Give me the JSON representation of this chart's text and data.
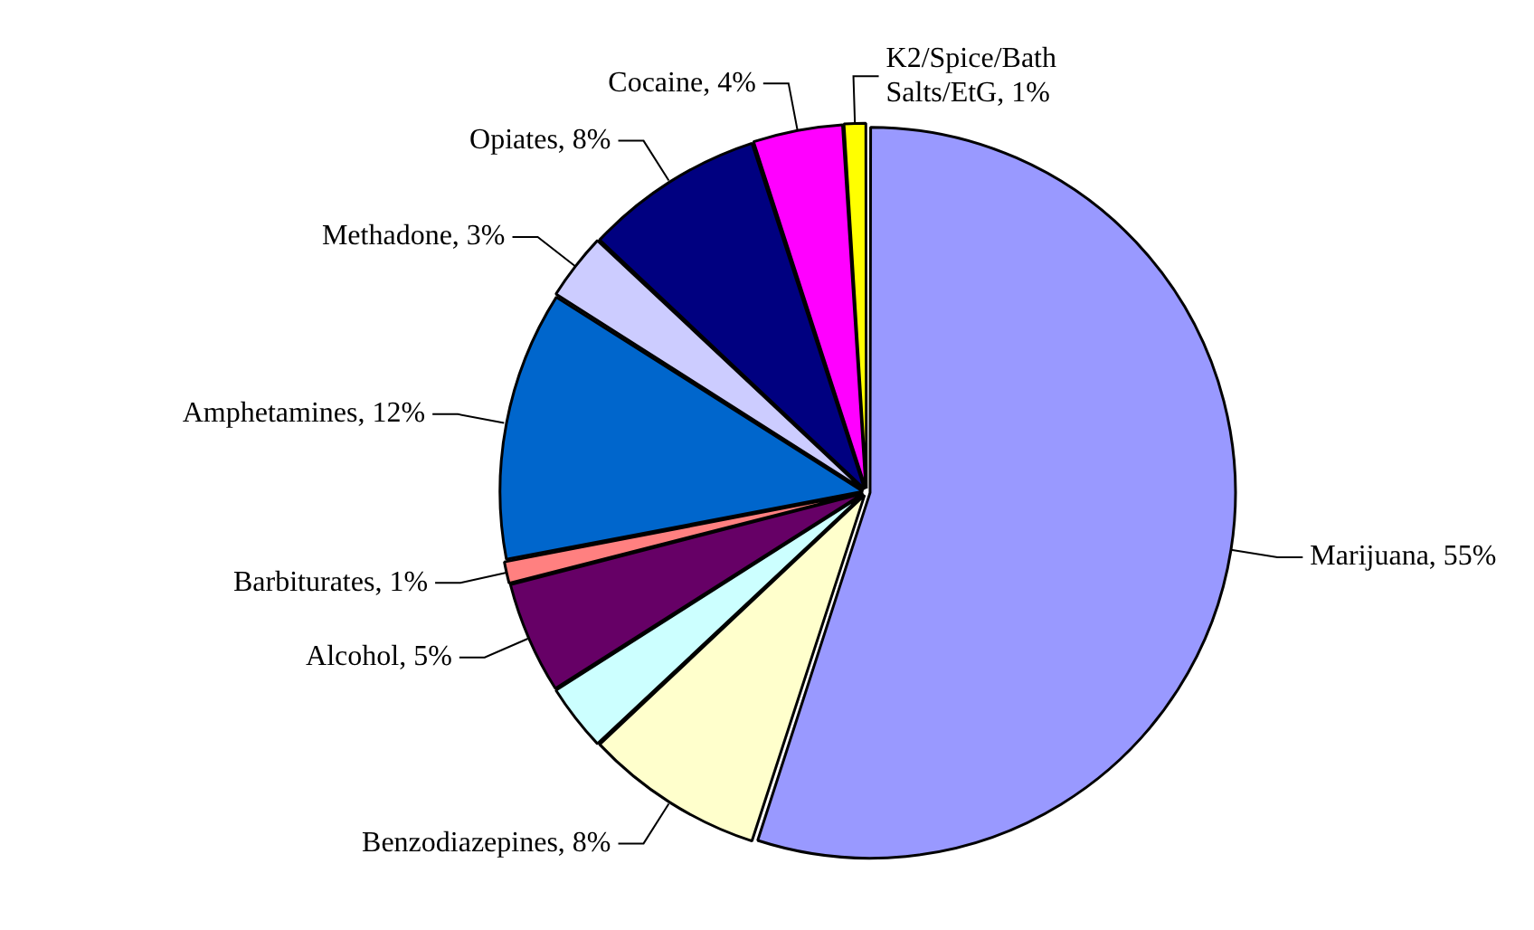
{
  "chart_data": {
    "type": "pie",
    "categories": [
      "Marijuana",
      "Benzodiazepines",
      null,
      "Alcohol",
      "Barbiturates",
      "Amphetamines",
      "Methadone",
      "Opiates",
      "Cocaine",
      "K2/Spice/Bath Salts/EtG"
    ],
    "values": [
      55,
      8,
      3,
      5,
      1,
      12,
      3,
      8,
      4,
      1
    ],
    "value_labels": [
      "55%",
      "8%",
      null,
      "5%",
      "1%",
      "12%",
      "3%",
      "8%",
      "4%",
      "1%"
    ],
    "colors": [
      "#9999ff",
      "#ffffcc",
      "#ccffff",
      "#660066",
      "#ff8080",
      "#0066cc",
      "#ccccff",
      "#000080",
      "#ff00ff",
      "#ffff00"
    ],
    "legend": false
  }
}
